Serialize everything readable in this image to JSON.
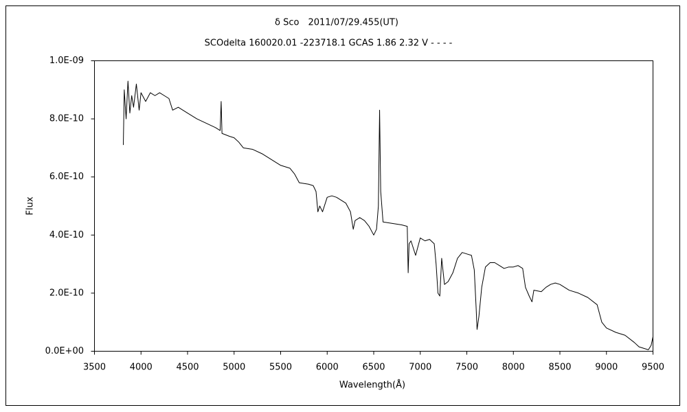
{
  "chart_data": {
    "type": "line",
    "title": "δ Sco　2011/07/29.455(UT)",
    "subtitle": "SCOdelta 160020.01 -223718.1 GCAS 1.86 2.32 V - - - -",
    "y_label": "Flux",
    "x_label": "Wavelength(Å)",
    "color": "#000000",
    "grid": false,
    "xlim": [
      3500,
      9500
    ],
    "xticks": [
      3500,
      4000,
      4500,
      5000,
      5500,
      6000,
      6500,
      7000,
      7500,
      8000,
      8500,
      9000,
      9500
    ],
    "ylim": [
      0,
      1e-09
    ],
    "yticks": [
      {
        "value": 0,
        "label": "0.0E+00"
      },
      {
        "value": 2e-10,
        "label": "2.0E-10"
      },
      {
        "value": 4e-10,
        "label": "4.0E-10"
      },
      {
        "value": 6e-10,
        "label": "6.0E-10"
      },
      {
        "value": 8e-10,
        "label": "8.0E-10"
      },
      {
        "value": 1e-09,
        "label": "1.0E-09"
      }
    ],
    "x": [
      3810,
      3820,
      3840,
      3860,
      3880,
      3900,
      3920,
      3950,
      3980,
      4000,
      4050,
      4100,
      4150,
      4200,
      4250,
      4300,
      4340,
      4400,
      4500,
      4600,
      4700,
      4800,
      4850,
      4861,
      4870,
      4950,
      5000,
      5050,
      5100,
      5200,
      5300,
      5400,
      5500,
      5600,
      5650,
      5700,
      5800,
      5850,
      5880,
      5900,
      5920,
      5950,
      6000,
      6050,
      6100,
      6200,
      6250,
      6280,
      6300,
      6350,
      6400,
      6450,
      6500,
      6530,
      6550,
      6563,
      6575,
      6600,
      6700,
      6800,
      6860,
      6870,
      6880,
      6900,
      6950,
      7000,
      7050,
      7100,
      7150,
      7170,
      7190,
      7210,
      7230,
      7260,
      7300,
      7350,
      7400,
      7450,
      7500,
      7550,
      7580,
      7600,
      7610,
      7630,
      7660,
      7700,
      7750,
      7800,
      7850,
      7900,
      7950,
      8000,
      8050,
      8100,
      8130,
      8170,
      8200,
      8220,
      8300,
      8350,
      8400,
      8450,
      8500,
      8600,
      8700,
      8800,
      8900,
      8950,
      9000,
      9100,
      9200,
      9300,
      9350,
      9400,
      9450,
      9480,
      9500
    ],
    "values": [
      7.1e-10,
      9e-10,
      8e-10,
      9.3e-10,
      8.2e-10,
      8.8e-10,
      8.4e-10,
      9.2e-10,
      8.3e-10,
      8.9e-10,
      8.6e-10,
      8.9e-10,
      8.8e-10,
      8.9e-10,
      8.8e-10,
      8.7e-10,
      8.3e-10,
      8.4e-10,
      8.2e-10,
      8e-10,
      7.85e-10,
      7.7e-10,
      7.6e-10,
      8.6e-10,
      7.5e-10,
      7.4e-10,
      7.35e-10,
      7.2e-10,
      7e-10,
      6.95e-10,
      6.8e-10,
      6.6e-10,
      6.4e-10,
      6.3e-10,
      6.1e-10,
      5.8e-10,
      5.75e-10,
      5.7e-10,
      5.5e-10,
      4.8e-10,
      5e-10,
      4.8e-10,
      5.3e-10,
      5.35e-10,
      5.3e-10,
      5.1e-10,
      4.8e-10,
      4.2e-10,
      4.5e-10,
      4.6e-10,
      4.5e-10,
      4.3e-10,
      4e-10,
      4.2e-10,
      5e-10,
      8.3e-10,
      5.5e-10,
      4.45e-10,
      4.4e-10,
      4.35e-10,
      4.3e-10,
      2.7e-10,
      3.7e-10,
      3.8e-10,
      3.3e-10,
      3.9e-10,
      3.8e-10,
      3.85e-10,
      3.7e-10,
      3e-10,
      2e-10,
      1.9e-10,
      3.2e-10,
      2.3e-10,
      2.4e-10,
      2.7e-10,
      3.2e-10,
      3.4e-10,
      3.35e-10,
      3.3e-10,
      2.8e-10,
      1.5e-10,
      7.5e-11,
      1.2e-10,
      2.2e-10,
      2.9e-10,
      3.05e-10,
      3.05e-10,
      2.95e-10,
      2.85e-10,
      2.9e-10,
      2.9e-10,
      2.95e-10,
      2.85e-10,
      2.2e-10,
      1.9e-10,
      1.7e-10,
      2.1e-10,
      2.05e-10,
      2.2e-10,
      2.3e-10,
      2.35e-10,
      2.3e-10,
      2.1e-10,
      2e-10,
      1.85e-10,
      1.6e-10,
      1e-10,
      8e-11,
      6.5e-11,
      5.5e-11,
      3e-11,
      1.5e-11,
      1e-11,
      5e-12,
      2e-11,
      5e-11
    ]
  }
}
